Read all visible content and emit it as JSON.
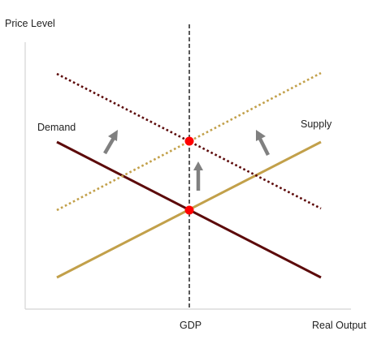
{
  "axes": {
    "y_label": "Price Level",
    "x_label": "Real Output"
  },
  "markers": {
    "vertical_line_label": "GDP"
  },
  "curves": {
    "demand_label": "Demand",
    "supply_label": "Supply"
  },
  "colors": {
    "demand": "#5c0a0a",
    "supply": "#c2a04a",
    "equilibrium": "#ff0000",
    "arrow": "#808080",
    "axis": "#d4d4d4",
    "gdp_line": "#000000"
  },
  "shift_direction": "up"
}
